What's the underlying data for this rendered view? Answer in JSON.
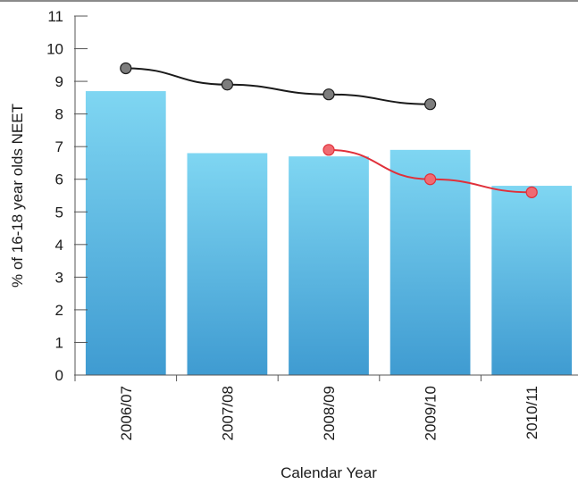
{
  "chart_data": {
    "type": "bar",
    "categories": [
      "2006/07",
      "2007/08",
      "2008/09",
      "2009/10",
      "2010/11"
    ],
    "values": [
      8.7,
      6.8,
      6.7,
      6.9,
      5.8
    ],
    "lines": [
      {
        "values": [
          9.4,
          8.9,
          8.6,
          8.3,
          null
        ],
        "color": "#1a1a1a",
        "marker_color": "#7d7d7d"
      },
      {
        "values": [
          null,
          null,
          6.9,
          6.0,
          5.6
        ],
        "color": "#e0303a",
        "marker_color": "#f06b72"
      }
    ],
    "xlabel": "Calendar Year",
    "ylabel": "% of 16-18 year olds NEET",
    "ylim": [
      0,
      11
    ],
    "yticks": [
      "0",
      "1",
      "2",
      "3",
      "4",
      "5",
      "6",
      "7",
      "8",
      "9",
      "10",
      "11"
    ],
    "grid": false,
    "colors": {
      "bar_top": "#7fd6f2",
      "bar_bottom": "#3f9bd1",
      "axis": "#555555"
    }
  }
}
